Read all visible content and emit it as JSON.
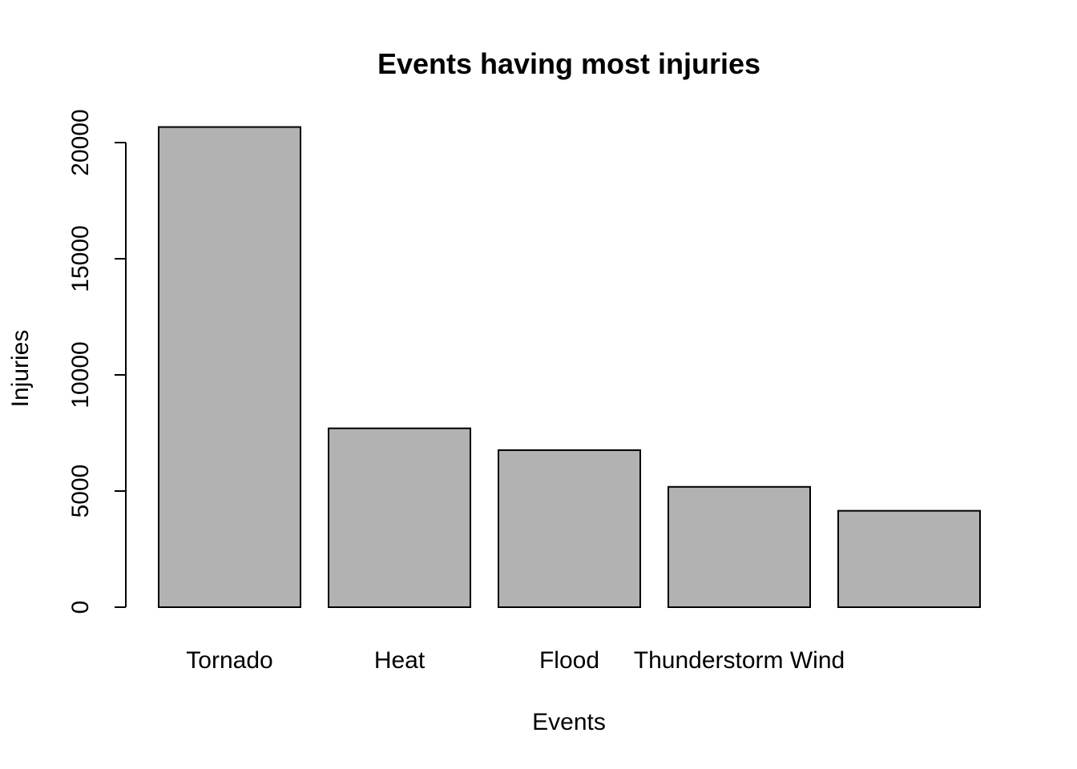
{
  "chart_data": {
    "type": "bar",
    "title": "Events having most injuries",
    "xlabel": "Events",
    "ylabel": "Injuries",
    "categories": [
      "Tornado",
      "Heat",
      "Flood",
      "Thunderstorm Wind",
      ""
    ],
    "values": [
      20670,
      7700,
      6760,
      5180,
      4150
    ],
    "ylim": [
      0,
      20000
    ],
    "yticks": [
      0,
      5000,
      10000,
      15000,
      20000
    ],
    "bar_color": "#b2b2b2",
    "grid": false,
    "legend": "none"
  }
}
